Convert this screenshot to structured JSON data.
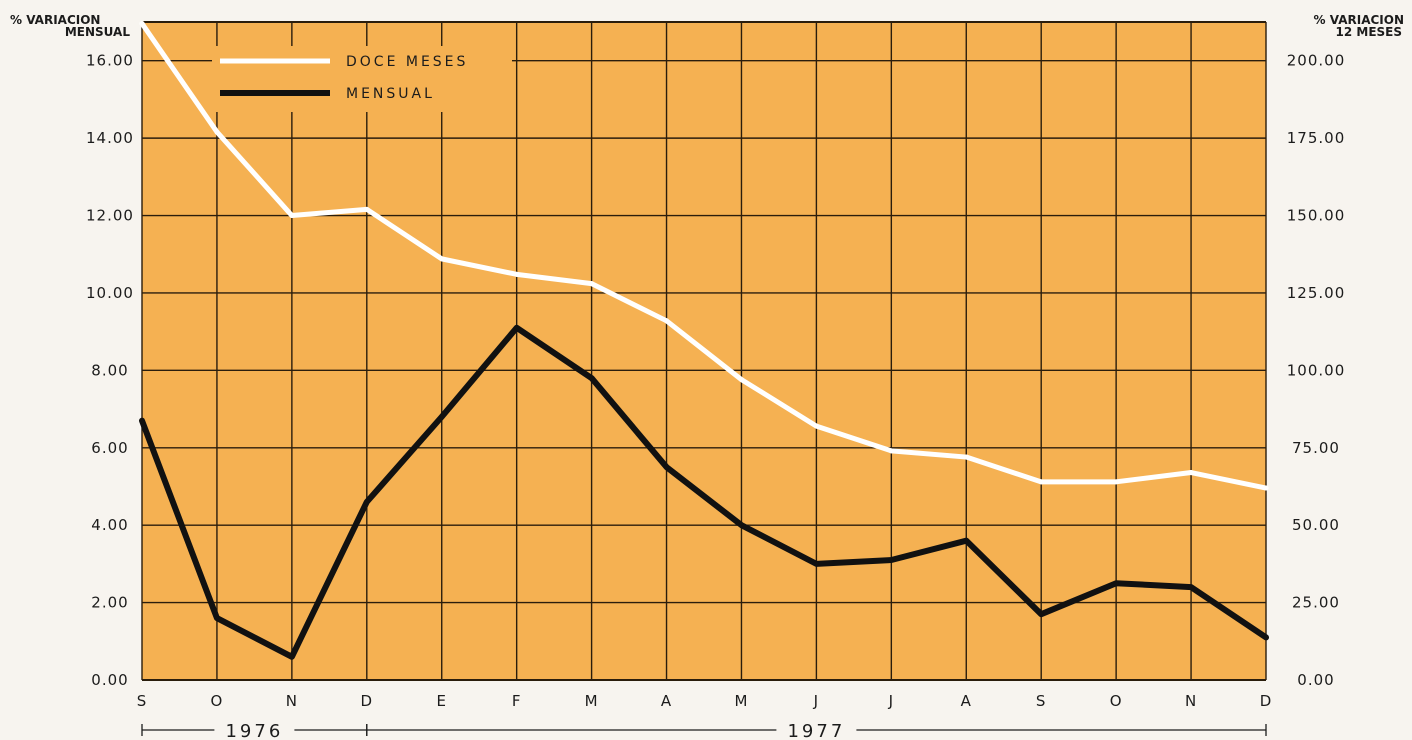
{
  "chart_data": {
    "type": "line",
    "categories": [
      "S",
      "O",
      "N",
      "D",
      "E",
      "F",
      "M",
      "A",
      "M",
      "J",
      "J",
      "A",
      "S",
      "O",
      "N",
      "D"
    ],
    "years": [
      {
        "label": "1976",
        "from": 0,
        "to": 3
      },
      {
        "label": "1977",
        "from": 3,
        "to": 15
      }
    ],
    "left_axis": {
      "title_line1": "% VARIACION",
      "title_line2": "MENSUAL",
      "ticks": [
        "0.00",
        "2.00",
        "4.00",
        "6.00",
        "8.00",
        "10.00",
        "12.00",
        "14.00",
        "16.00"
      ],
      "range": [
        0,
        17
      ]
    },
    "right_axis": {
      "title_line1": "% VARIACION",
      "title_line2": "12 MESES",
      "ticks": [
        "0.00",
        "25.00",
        "50.00",
        "75.00",
        "100.00",
        "125.00",
        "150.00",
        "175.00",
        "200.00"
      ],
      "range": [
        0,
        212.5
      ]
    },
    "series": [
      {
        "name": "DOCE MESES",
        "axis": "right",
        "color": "#ffffff",
        "values": [
          212,
          177,
          150,
          152,
          136,
          131,
          128,
          116,
          97,
          82,
          74,
          72,
          64,
          64,
          67,
          62
        ]
      },
      {
        "name": "MENSUAL",
        "axis": "left",
        "color": "#111111",
        "values": [
          6.7,
          1.6,
          0.6,
          4.6,
          6.8,
          9.1,
          7.8,
          5.5,
          4.0,
          3.0,
          3.1,
          3.6,
          1.7,
          2.5,
          2.4,
          1.1
        ]
      }
    ],
    "grid": true,
    "legend_position": "top-left",
    "colors": {
      "plot_background": "#f5b152",
      "grid": "#2a1d0c",
      "page_background": "#f7f4ef"
    }
  }
}
